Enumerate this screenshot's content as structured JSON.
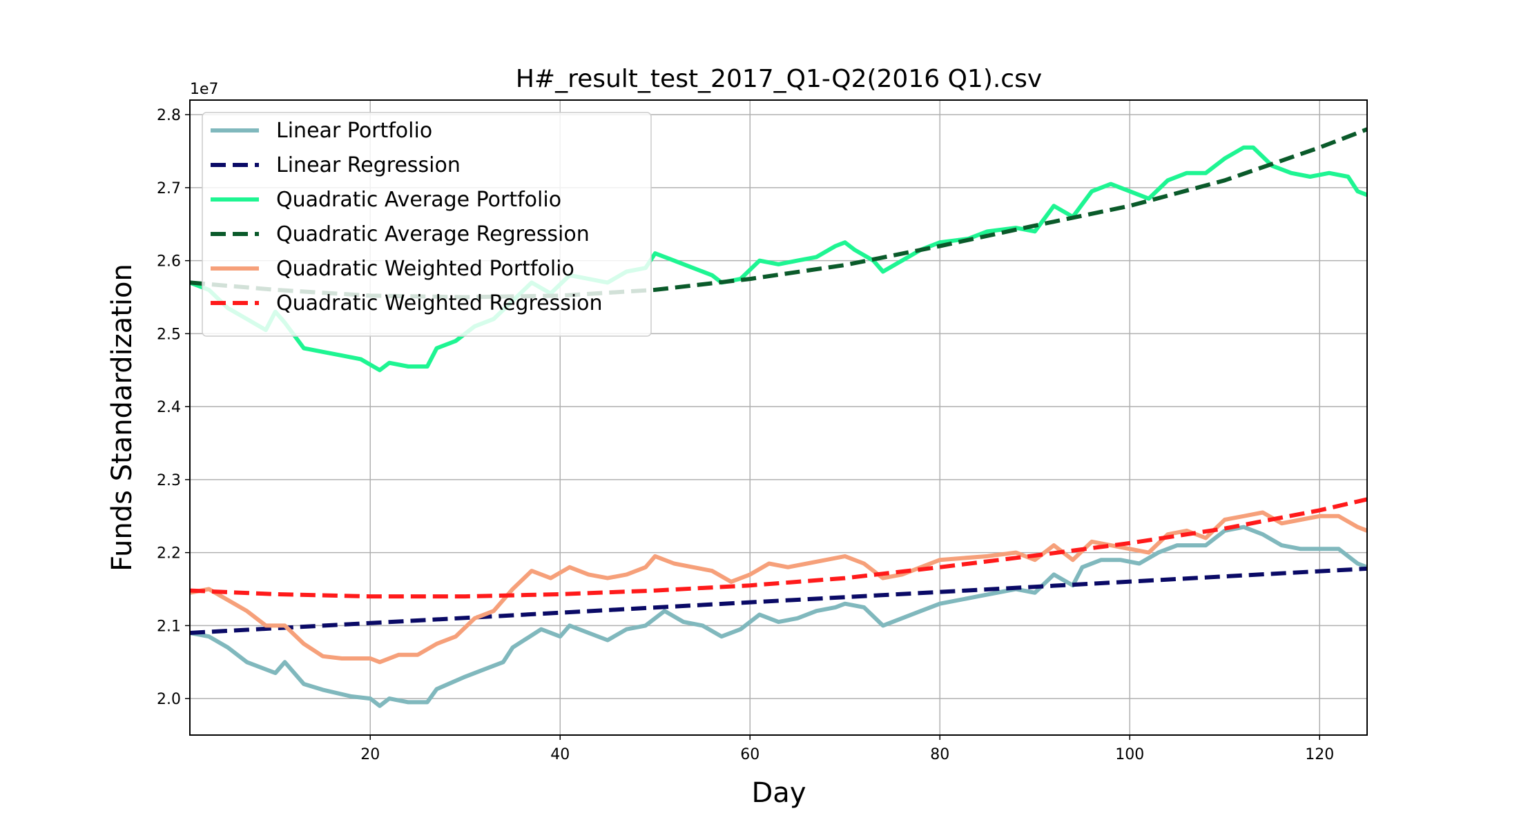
{
  "chart_data": {
    "type": "line",
    "title": "H#_result_test_2017_Q1-Q2(2016 Q1).csv",
    "xlabel": "Day",
    "ylabel": "Funds Standardization",
    "y_offset_label": "1e7",
    "xlim": [
      1,
      125
    ],
    "ylim": [
      1.95,
      2.82
    ],
    "x_ticks": [
      20,
      40,
      60,
      80,
      100,
      120
    ],
    "x_tick_labels": [
      "20",
      "40",
      "60",
      "80",
      "100",
      "120"
    ],
    "y_ticks": [
      2.0,
      2.1,
      2.2,
      2.3,
      2.4,
      2.5,
      2.6,
      2.7,
      2.8
    ],
    "y_tick_labels": [
      "2.0",
      "2.1",
      "2.2",
      "2.3",
      "2.4",
      "2.5",
      "2.6",
      "2.7",
      "2.8"
    ],
    "grid": true,
    "legend_position": "top-left",
    "series": [
      {
        "name": "Linear Portfolio",
        "color": "#80b8bd",
        "style": "solid",
        "points": [
          [
            1,
            2.09
          ],
          [
            3,
            2.085
          ],
          [
            5,
            2.07
          ],
          [
            7,
            2.05
          ],
          [
            10,
            2.035
          ],
          [
            11,
            2.05
          ],
          [
            13,
            2.02
          ],
          [
            15,
            2.012
          ],
          [
            18,
            2.003
          ],
          [
            20,
            2.0
          ],
          [
            21,
            1.99
          ],
          [
            22,
            2.0
          ],
          [
            24,
            1.995
          ],
          [
            26,
            1.995
          ],
          [
            27,
            2.013
          ],
          [
            30,
            2.03
          ],
          [
            32,
            2.04
          ],
          [
            34,
            2.05
          ],
          [
            35,
            2.07
          ],
          [
            38,
            2.095
          ],
          [
            40,
            2.085
          ],
          [
            41,
            2.1
          ],
          [
            43,
            2.09
          ],
          [
            45,
            2.08
          ],
          [
            47,
            2.095
          ],
          [
            49,
            2.1
          ],
          [
            51,
            2.12
          ],
          [
            53,
            2.105
          ],
          [
            55,
            2.1
          ],
          [
            57,
            2.085
          ],
          [
            59,
            2.095
          ],
          [
            61,
            2.115
          ],
          [
            63,
            2.105
          ],
          [
            65,
            2.11
          ],
          [
            67,
            2.12
          ],
          [
            69,
            2.125
          ],
          [
            70,
            2.13
          ],
          [
            72,
            2.125
          ],
          [
            74,
            2.1
          ],
          [
            76,
            2.11
          ],
          [
            78,
            2.12
          ],
          [
            80,
            2.13
          ],
          [
            84,
            2.14
          ],
          [
            88,
            2.15
          ],
          [
            90,
            2.145
          ],
          [
            92,
            2.17
          ],
          [
            94,
            2.155
          ],
          [
            95,
            2.18
          ],
          [
            97,
            2.19
          ],
          [
            99,
            2.19
          ],
          [
            101,
            2.185
          ],
          [
            103,
            2.2
          ],
          [
            105,
            2.21
          ],
          [
            108,
            2.21
          ],
          [
            110,
            2.23
          ],
          [
            112,
            2.235
          ],
          [
            114,
            2.225
          ],
          [
            116,
            2.21
          ],
          [
            118,
            2.205
          ],
          [
            120,
            2.205
          ],
          [
            122,
            2.205
          ],
          [
            124,
            2.185
          ],
          [
            125,
            2.18
          ]
        ]
      },
      {
        "name": "Linear Regression",
        "color": "#0a0a66",
        "style": "dashed",
        "points": [
          [
            1,
            2.09
          ],
          [
            125,
            2.178
          ]
        ]
      },
      {
        "name": "Quadratic Average Portfolio",
        "color": "#1ef592",
        "style": "solid",
        "points": [
          [
            1,
            2.57
          ],
          [
            3,
            2.56
          ],
          [
            5,
            2.535
          ],
          [
            7,
            2.52
          ],
          [
            9,
            2.505
          ],
          [
            10,
            2.53
          ],
          [
            11,
            2.515
          ],
          [
            13,
            2.48
          ],
          [
            15,
            2.475
          ],
          [
            17,
            2.47
          ],
          [
            19,
            2.465
          ],
          [
            21,
            2.45
          ],
          [
            22,
            2.46
          ],
          [
            24,
            2.455
          ],
          [
            26,
            2.455
          ],
          [
            27,
            2.48
          ],
          [
            29,
            2.49
          ],
          [
            31,
            2.51
          ],
          [
            33,
            2.52
          ],
          [
            35,
            2.545
          ],
          [
            37,
            2.57
          ],
          [
            39,
            2.555
          ],
          [
            41,
            2.58
          ],
          [
            43,
            2.575
          ],
          [
            45,
            2.57
          ],
          [
            47,
            2.585
          ],
          [
            49,
            2.59
          ],
          [
            50,
            2.61
          ],
          [
            52,
            2.6
          ],
          [
            54,
            2.59
          ],
          [
            56,
            2.58
          ],
          [
            57,
            2.57
          ],
          [
            59,
            2.575
          ],
          [
            61,
            2.6
          ],
          [
            63,
            2.595
          ],
          [
            65,
            2.6
          ],
          [
            67,
            2.605
          ],
          [
            69,
            2.62
          ],
          [
            70,
            2.625
          ],
          [
            71,
            2.615
          ],
          [
            73,
            2.6
          ],
          [
            74,
            2.585
          ],
          [
            76,
            2.6
          ],
          [
            78,
            2.615
          ],
          [
            80,
            2.625
          ],
          [
            83,
            2.63
          ],
          [
            85,
            2.64
          ],
          [
            88,
            2.645
          ],
          [
            90,
            2.64
          ],
          [
            92,
            2.675
          ],
          [
            94,
            2.66
          ],
          [
            96,
            2.695
          ],
          [
            98,
            2.705
          ],
          [
            100,
            2.695
          ],
          [
            102,
            2.685
          ],
          [
            104,
            2.71
          ],
          [
            106,
            2.72
          ],
          [
            108,
            2.72
          ],
          [
            110,
            2.74
          ],
          [
            112,
            2.755
          ],
          [
            113,
            2.755
          ],
          [
            115,
            2.73
          ],
          [
            117,
            2.72
          ],
          [
            119,
            2.715
          ],
          [
            121,
            2.72
          ],
          [
            123,
            2.715
          ],
          [
            124,
            2.695
          ],
          [
            125,
            2.69
          ]
        ]
      },
      {
        "name": "Quadratic Average Regression",
        "color": "#0a5a2a",
        "style": "dashed",
        "points": [
          [
            1,
            2.57
          ],
          [
            10,
            2.56
          ],
          [
            20,
            2.552
          ],
          [
            30,
            2.55
          ],
          [
            40,
            2.552
          ],
          [
            50,
            2.56
          ],
          [
            60,
            2.575
          ],
          [
            70,
            2.594
          ],
          [
            80,
            2.62
          ],
          [
            90,
            2.648
          ],
          [
            100,
            2.675
          ],
          [
            110,
            2.71
          ],
          [
            120,
            2.755
          ],
          [
            125,
            2.78
          ]
        ]
      },
      {
        "name": "Quadratic Weighted Portfolio",
        "color": "#f6a07a",
        "style": "solid",
        "points": [
          [
            1,
            2.145
          ],
          [
            3,
            2.15
          ],
          [
            5,
            2.135
          ],
          [
            7,
            2.12
          ],
          [
            9,
            2.1
          ],
          [
            11,
            2.1
          ],
          [
            13,
            2.075
          ],
          [
            15,
            2.058
          ],
          [
            17,
            2.055
          ],
          [
            20,
            2.055
          ],
          [
            21,
            2.05
          ],
          [
            23,
            2.06
          ],
          [
            25,
            2.06
          ],
          [
            27,
            2.075
          ],
          [
            29,
            2.085
          ],
          [
            31,
            2.11
          ],
          [
            33,
            2.12
          ],
          [
            35,
            2.15
          ],
          [
            37,
            2.175
          ],
          [
            39,
            2.165
          ],
          [
            41,
            2.18
          ],
          [
            43,
            2.17
          ],
          [
            45,
            2.165
          ],
          [
            47,
            2.17
          ],
          [
            49,
            2.18
          ],
          [
            50,
            2.195
          ],
          [
            52,
            2.185
          ],
          [
            54,
            2.18
          ],
          [
            56,
            2.175
          ],
          [
            58,
            2.16
          ],
          [
            60,
            2.17
          ],
          [
            62,
            2.185
          ],
          [
            64,
            2.18
          ],
          [
            66,
            2.185
          ],
          [
            68,
            2.19
          ],
          [
            70,
            2.195
          ],
          [
            72,
            2.185
          ],
          [
            74,
            2.165
          ],
          [
            76,
            2.17
          ],
          [
            78,
            2.18
          ],
          [
            80,
            2.19
          ],
          [
            85,
            2.195
          ],
          [
            88,
            2.2
          ],
          [
            90,
            2.19
          ],
          [
            92,
            2.21
          ],
          [
            94,
            2.19
          ],
          [
            96,
            2.215
          ],
          [
            98,
            2.21
          ],
          [
            100,
            2.205
          ],
          [
            102,
            2.2
          ],
          [
            104,
            2.225
          ],
          [
            106,
            2.23
          ],
          [
            108,
            2.22
          ],
          [
            110,
            2.245
          ],
          [
            112,
            2.25
          ],
          [
            114,
            2.255
          ],
          [
            116,
            2.24
          ],
          [
            118,
            2.245
          ],
          [
            120,
            2.25
          ],
          [
            122,
            2.25
          ],
          [
            124,
            2.235
          ],
          [
            125,
            2.23
          ]
        ]
      },
      {
        "name": "Quadratic Weighted Regression",
        "color": "#ff1a1a",
        "style": "dashed",
        "points": [
          [
            1,
            2.148
          ],
          [
            10,
            2.143
          ],
          [
            20,
            2.14
          ],
          [
            30,
            2.14
          ],
          [
            40,
            2.143
          ],
          [
            50,
            2.148
          ],
          [
            60,
            2.155
          ],
          [
            70,
            2.165
          ],
          [
            80,
            2.18
          ],
          [
            90,
            2.196
          ],
          [
            100,
            2.213
          ],
          [
            110,
            2.233
          ],
          [
            120,
            2.258
          ],
          [
            125,
            2.273
          ]
        ]
      }
    ]
  }
}
